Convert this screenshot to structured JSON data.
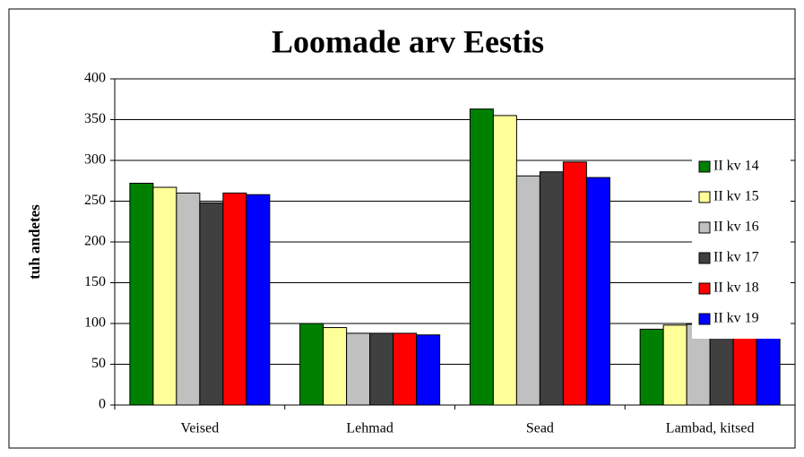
{
  "chart_data": {
    "type": "bar",
    "title": "Loomade arv Eestis",
    "y_label": "tuh andetes",
    "categories": [
      "Veised",
      "Lehmad",
      "Sead",
      "Lambad, kitsed"
    ],
    "series": [
      {
        "name": "II kv 14",
        "color": "#008000",
        "values": [
          272,
          100,
          363,
          93
        ]
      },
      {
        "name": "II kv 15",
        "color": "#ffff99",
        "values": [
          267,
          95,
          355,
          98
        ]
      },
      {
        "name": "II kv 16",
        "color": "#c0c0c0",
        "values": [
          260,
          88,
          281,
          99
        ]
      },
      {
        "name": "II kv 17",
        "color": "#404040",
        "values": [
          248,
          88,
          286,
          99
        ]
      },
      {
        "name": "II kv 18",
        "color": "#ff0000",
        "values": [
          260,
          88,
          298,
          99
        ]
      },
      {
        "name": "II kv 19",
        "color": "#0000ff",
        "values": [
          258,
          86,
          279,
          95
        ]
      }
    ],
    "ylim": [
      0,
      400
    ],
    "yticks": [
      0,
      50,
      100,
      150,
      200,
      250,
      300,
      350,
      400
    ],
    "grid": true,
    "legend": "right"
  }
}
